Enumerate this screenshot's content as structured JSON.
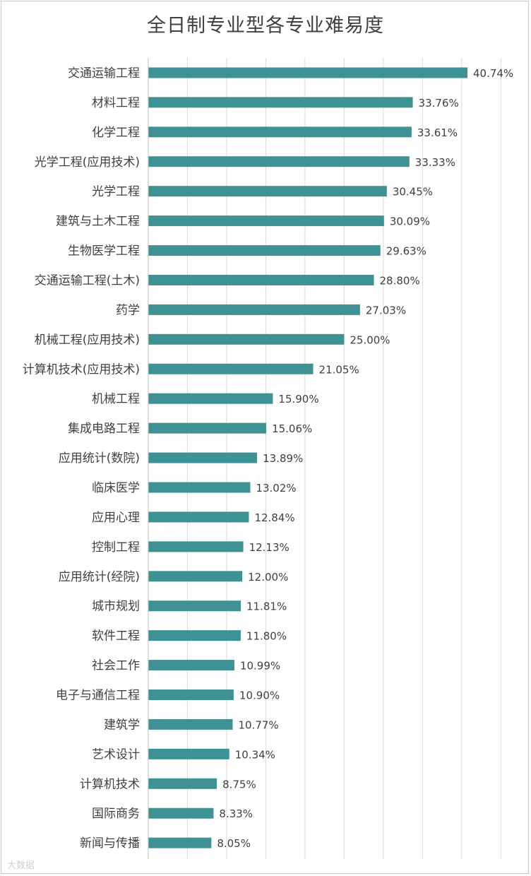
{
  "chart_data": {
    "type": "bar",
    "orientation": "horizontal",
    "title": "全日制专业型各专业难易度",
    "categories": [
      "交通运输工程",
      "材料工程",
      "化学工程",
      "光学工程(应用技术)",
      "光学工程",
      "建筑与土木工程",
      "生物医学工程",
      "交通运输工程(土木)",
      "药学",
      "机械工程(应用技术)",
      "计算机技术(应用技术)",
      "机械工程",
      "集成电路工程",
      "应用统计(数院)",
      "临床医学",
      "应用心理",
      "控制工程",
      "应用统计(经院)",
      "城市规划",
      "软件工程",
      "社会工作",
      "电子与通信工程",
      "建筑学",
      "艺术设计",
      "计算机技术",
      "国际商务",
      "新闻与传播"
    ],
    "values": [
      40.74,
      33.76,
      33.61,
      33.33,
      30.45,
      30.09,
      29.63,
      28.8,
      27.03,
      25.0,
      21.05,
      15.9,
      15.06,
      13.89,
      13.02,
      12.84,
      12.13,
      12.0,
      11.81,
      11.8,
      10.99,
      10.9,
      10.77,
      10.34,
      8.75,
      8.33,
      8.05
    ],
    "value_labels": [
      "40.74%",
      "33.76%",
      "33.61%",
      "33.33%",
      "30.45%",
      "30.09%",
      "29.63%",
      "28.80%",
      "27.03%",
      "25.00%",
      "21.05%",
      "15.90%",
      "15.06%",
      "13.89%",
      "13.02%",
      "12.84%",
      "12.13%",
      "12.00%",
      "11.81%",
      "11.80%",
      "10.99%",
      "10.90%",
      "10.77%",
      "10.34%",
      "8.75%",
      "8.33%",
      "8.05%"
    ],
    "xlim": [
      0,
      47.5
    ],
    "grid": true,
    "legend": "none",
    "bar_color": "#3f9294"
  },
  "watermark": "大数据"
}
